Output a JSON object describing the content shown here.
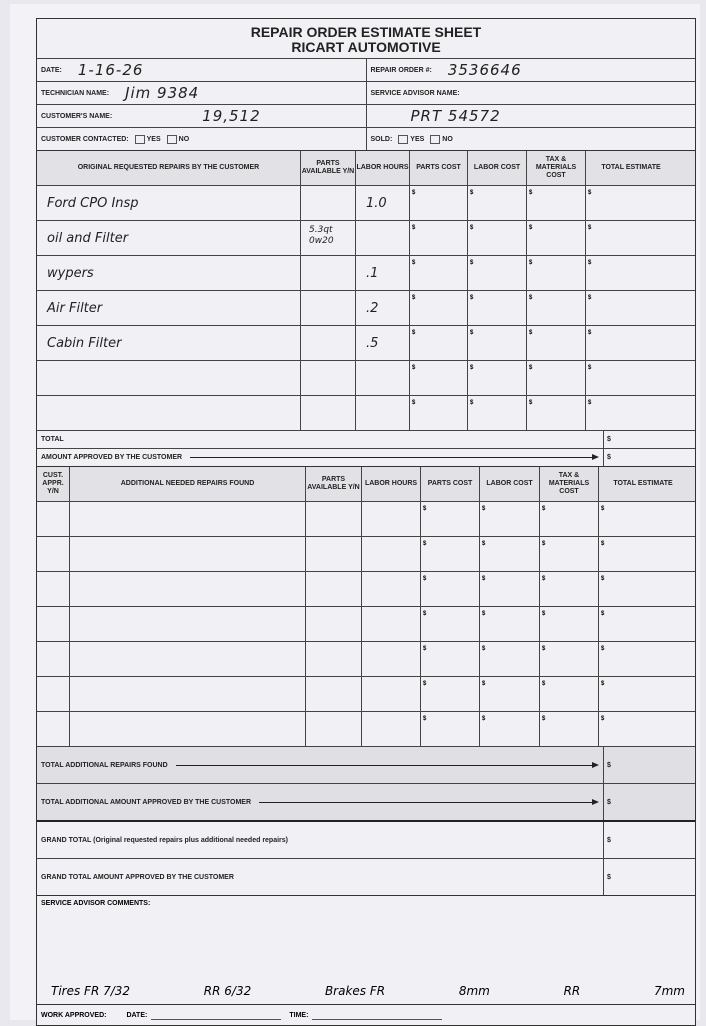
{
  "header": {
    "title_line1": "REPAIR ORDER ESTIMATE SHEET",
    "title_line2": "RICART AUTOMOTIVE",
    "date_label": "DATE:",
    "date_value": "1-16-26",
    "repair_order_label": "REPAIR ORDER #:",
    "repair_order_value": "3536646",
    "technician_label": "TECHNICIAN NAME:",
    "technician_value": "Jim 9384",
    "service_advisor_label": "SERVICE ADVISOR NAME:",
    "service_advisor_value": "",
    "customer_label": "CUSTOMER'S NAME:",
    "customer_value": "19,512",
    "advisor_extra_value": "PRT 54572",
    "contacted_label": "CUSTOMER CONTACTED:",
    "sold_label": "SOLD:",
    "yes_label": "YES",
    "no_label": "NO"
  },
  "original": {
    "columns": [
      "ORIGINAL REQUESTED REPAIRS BY THE CUSTOMER",
      "PARTS AVAILABLE Y/N",
      "LABOR HOURS",
      "PARTS COST",
      "LABOR COST",
      "TAX & MATERIALS COST",
      "TOTAL ESTIMATE"
    ],
    "rows": [
      {
        "desc": "Ford CPO Insp",
        "parts": "",
        "hours": "1.0"
      },
      {
        "desc": "oil and Filter",
        "parts": "5.3qt 0w20",
        "hours": ""
      },
      {
        "desc": "wypers",
        "parts": "",
        "hours": ".1"
      },
      {
        "desc": "Air Filter",
        "parts": "",
        "hours": ".2"
      },
      {
        "desc": "Cabin Filter",
        "parts": "",
        "hours": ".5"
      },
      {
        "desc": "",
        "parts": "",
        "hours": ""
      },
      {
        "desc": "",
        "parts": "",
        "hours": ""
      }
    ],
    "total_label": "TOTAL",
    "approved_label": "AMOUNT APPROVED BY THE CUSTOMER",
    "currency": "$"
  },
  "additional": {
    "columns": [
      "CUST. APPR. Y/N",
      "ADDITIONAL NEEDED REPAIRS FOUND",
      "PARTS AVAILABLE Y/N",
      "LABOR HOURS",
      "PARTS COST",
      "LABOR COST",
      "TAX & MATERIALS COST",
      "TOTAL ESTIMATE"
    ],
    "row_count": 7,
    "total_found_label": "TOTAL ADDITIONAL REPAIRS FOUND",
    "total_approved_label": "TOTAL ADDITIONAL AMOUNT APPROVED BY THE CUSTOMER",
    "grand_total_label": "GRAND TOTAL (Original requested repairs plus additional needed repairs)",
    "grand_approved_label": "GRAND TOTAL AMOUNT APPROVED BY THE CUSTOMER"
  },
  "comments": {
    "label": "SERVICE ADVISOR COMMENTS:",
    "notes": [
      "Tires FR 7/32",
      "RR 6/32",
      "Brakes FR",
      "8mm",
      "RR",
      "7mm"
    ]
  },
  "footer": {
    "work_approved_label": "WORK APPROVED:",
    "date_label": "DATE:",
    "time_label": "TIME:"
  }
}
